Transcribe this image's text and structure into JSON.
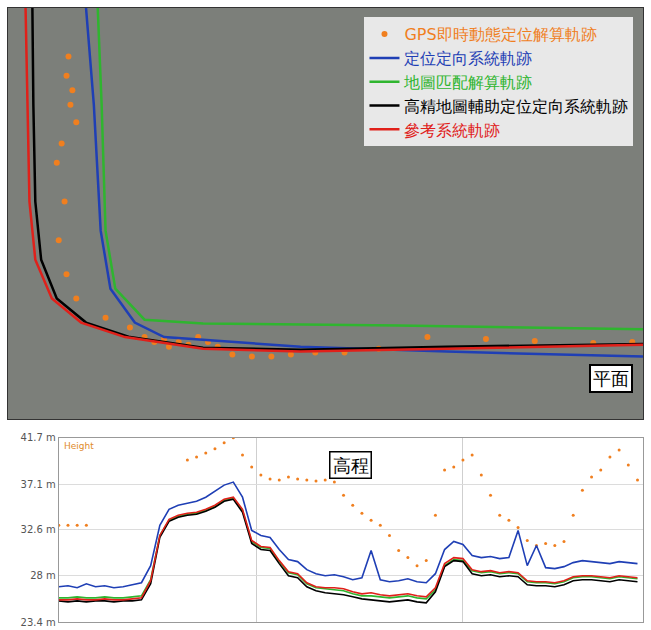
{
  "chart_data": [
    {
      "type": "line",
      "tick_labels": false,
      "legend": "top right",
      "annotations": [
        "平面"
      ],
      "xlim": [
        0,
        651
      ],
      "ylim": [
        425,
        0
      ],
      "series": [
        {
          "name": "GPS即時動態定位解算軌跡",
          "color": "#f07f1f",
          "type": "scatter",
          "marker": "dot",
          "x": [
            62,
            60,
            66,
            64,
            70,
            55,
            50,
            58,
            52,
            60,
            70,
            100,
            125,
            140,
            150,
            160,
            165,
            175,
            185,
            195,
            205,
            215,
            230,
            250,
            270,
            290,
            315,
            345,
            380,
            430,
            490,
            540,
            600,
            640
          ],
          "y": [
            50,
            70,
            85,
            100,
            118,
            140,
            160,
            200,
            240,
            275,
            300,
            320,
            330,
            340,
            345,
            342,
            350,
            345,
            348,
            340,
            345,
            350,
            358,
            360,
            360,
            358,
            356,
            356,
            352,
            340,
            342,
            344,
            346,
            345
          ]
        },
        {
          "name": "定位定向系統軌跡",
          "color": "#1f3fb5",
          "type": "line",
          "line_style": "solid",
          "x": [
            80,
            88,
            95,
            105,
            130,
            160,
            300,
            450,
            651
          ],
          "y": [
            0,
            100,
            230,
            290,
            325,
            340,
            350,
            355,
            360
          ]
        },
        {
          "name": "地圖匹配解算軌跡",
          "color": "#2fb52f",
          "type": "line",
          "line_style": "solid",
          "x": [
            92,
            96,
            100,
            110,
            140,
            200,
            400,
            651
          ],
          "y": [
            0,
            100,
            230,
            290,
            322,
            326,
            328,
            332
          ]
        },
        {
          "name": "高精地圖輔助定位定向系統軌跡",
          "color": "#000000",
          "type": "line",
          "line_style": "solid",
          "x": [
            25,
            26,
            28,
            34,
            50,
            80,
            125,
            200,
            300,
            450,
            651
          ],
          "y": [
            0,
            100,
            200,
            260,
            300,
            325,
            340,
            351,
            353,
            350,
            347
          ]
        },
        {
          "name": "參考系統軌跡",
          "color": "#e0201a",
          "type": "line",
          "line_style": "solid",
          "x": [
            18,
            20,
            22,
            28,
            45,
            75,
            120,
            200,
            300,
            450,
            651
          ],
          "y": [
            0,
            100,
            200,
            260,
            300,
            325,
            340,
            352,
            355,
            352,
            348
          ]
        }
      ]
    },
    {
      "type": "line",
      "annotations": [
        "Height",
        "高程"
      ],
      "tick_labels": "y",
      "grid": true,
      "x": [
        0,
        1,
        2,
        3,
        4,
        5,
        6,
        7,
        8,
        9,
        10,
        11,
        12,
        13,
        14,
        15,
        16,
        17,
        18,
        19,
        20,
        21,
        22,
        23,
        24,
        25,
        26,
        27,
        28,
        29,
        30,
        31,
        32,
        33,
        34,
        35,
        36,
        37,
        38,
        39,
        40,
        41,
        42,
        43,
        44,
        45,
        46,
        47,
        48,
        49,
        50,
        51,
        52,
        53,
        54,
        55,
        56,
        57,
        58,
        59,
        60,
        61,
        62,
        63
      ],
      "xlim": [
        0,
        63.6
      ],
      "xticks": [
        21.5,
        44
      ],
      "ylim": [
        23.4,
        41.7
      ],
      "yticks": [
        {
          "value": 23.4,
          "label": "23.4 m"
        },
        {
          "value": 28,
          "label": "28 m"
        },
        {
          "value": 32.6,
          "label": "32.6 m"
        },
        {
          "value": 37.1,
          "label": "37.1 m"
        },
        {
          "value": 41.7,
          "label": "41.7 m"
        }
      ],
      "series": [
        {
          "color": "#f07f1f",
          "type": "scatter",
          "marker": "dot",
          "values": [
            33.0,
            33.0,
            33.0,
            33.0,
            null,
            null,
            null,
            null,
            null,
            null,
            null,
            null,
            null,
            null,
            39.5,
            39.8,
            40.2,
            40.6,
            41.2,
            41.7,
            40.0,
            38.8,
            38.0,
            37.6,
            37.5,
            37.8,
            37.6,
            37.5,
            37.4,
            37.5,
            37.3,
            36.0,
            35.0,
            34.2,
            33.5,
            33.0,
            32.0,
            30.5,
            29.8,
            29.0,
            29.5,
            34.0,
            38.5,
            38.8,
            39.5,
            40.0,
            38.0,
            36.0,
            34.0,
            33.5,
            32.8,
            31.5,
            31.0,
            31.2,
            31.0,
            31.4,
            34.0,
            36.5,
            37.8,
            38.5,
            39.8,
            40.5,
            39.0,
            37.5
          ]
        },
        {
          "color": "#1f3fb5",
          "type": "line",
          "line_style": "solid",
          "values": [
            26.9,
            27.0,
            26.8,
            27.2,
            26.9,
            27.0,
            26.8,
            26.9,
            27.1,
            27.3,
            29.0,
            33.0,
            34.6,
            35.0,
            35.2,
            35.4,
            35.8,
            36.4,
            37.0,
            37.3,
            35.8,
            32.5,
            32.0,
            31.8,
            30.6,
            29.6,
            29.4,
            28.6,
            28.2,
            28.0,
            28.1,
            27.9,
            27.6,
            27.8,
            30.5,
            27.6,
            27.4,
            27.5,
            27.7,
            27.4,
            27.3,
            28.2,
            30.6,
            31.4,
            31.1,
            30.0,
            29.8,
            29.9,
            29.7,
            29.8,
            32.5,
            29.0,
            31.0,
            28.8,
            28.7,
            28.9,
            29.3,
            29.5,
            29.4,
            29.3,
            29.2,
            29.4,
            29.3,
            29.2
          ]
        },
        {
          "color": "#2fb52f",
          "type": "line",
          "line_style": "solid",
          "values": [
            25.8,
            25.8,
            25.9,
            25.8,
            25.8,
            25.9,
            25.8,
            25.8,
            25.9,
            26.0,
            27.6,
            32.0,
            33.5,
            33.9,
            34.1,
            34.2,
            34.5,
            34.9,
            35.5,
            35.7,
            34.5,
            31.4,
            30.8,
            30.7,
            29.4,
            28.3,
            28.1,
            27.2,
            26.8,
            26.7,
            26.6,
            26.5,
            26.2,
            26.0,
            26.0,
            25.9,
            25.8,
            25.9,
            26.0,
            25.8,
            25.7,
            26.6,
            29.0,
            29.6,
            29.5,
            28.5,
            28.3,
            28.4,
            28.2,
            28.3,
            28.2,
            27.4,
            27.3,
            27.3,
            27.2,
            27.4,
            27.8,
            27.9,
            27.9,
            27.8,
            27.7,
            27.9,
            27.8,
            27.7
          ]
        },
        {
          "color": "#000000",
          "type": "line",
          "line_style": "solid",
          "values": [
            25.5,
            25.4,
            25.5,
            25.4,
            25.5,
            25.5,
            25.4,
            25.5,
            25.5,
            25.6,
            27.2,
            31.8,
            33.4,
            33.8,
            34.0,
            34.1,
            34.4,
            34.8,
            35.4,
            35.6,
            34.3,
            31.2,
            30.6,
            30.5,
            29.2,
            28.0,
            27.8,
            26.9,
            26.5,
            26.3,
            26.2,
            26.1,
            25.9,
            25.7,
            25.6,
            25.5,
            25.4,
            25.5,
            25.6,
            25.4,
            25.3,
            26.4,
            28.9,
            29.5,
            29.4,
            28.2,
            28.0,
            28.1,
            27.9,
            28.0,
            27.9,
            27.1,
            27.0,
            27.0,
            26.9,
            27.1,
            27.5,
            27.6,
            27.6,
            27.5,
            27.4,
            27.6,
            27.5,
            27.4
          ]
        },
        {
          "color": "#e0201a",
          "type": "line",
          "line_style": "solid",
          "values": [
            25.6,
            25.6,
            25.7,
            25.6,
            25.6,
            25.7,
            25.6,
            25.6,
            25.7,
            25.8,
            27.5,
            32.0,
            33.6,
            34.0,
            34.2,
            34.3,
            34.6,
            35.0,
            35.6,
            35.8,
            34.6,
            31.5,
            30.9,
            30.8,
            29.5,
            28.4,
            28.2,
            27.3,
            26.9,
            26.8,
            26.8,
            26.7,
            26.4,
            26.2,
            26.3,
            26.1,
            26.0,
            26.1,
            26.2,
            26.0,
            25.9,
            26.8,
            29.2,
            29.8,
            29.7,
            28.6,
            28.4,
            28.5,
            28.3,
            28.4,
            28.3,
            27.5,
            27.4,
            27.4,
            27.3,
            27.5,
            27.9,
            28.0,
            28.0,
            27.9,
            27.8,
            28.0,
            27.9,
            27.8
          ]
        }
      ]
    }
  ]
}
